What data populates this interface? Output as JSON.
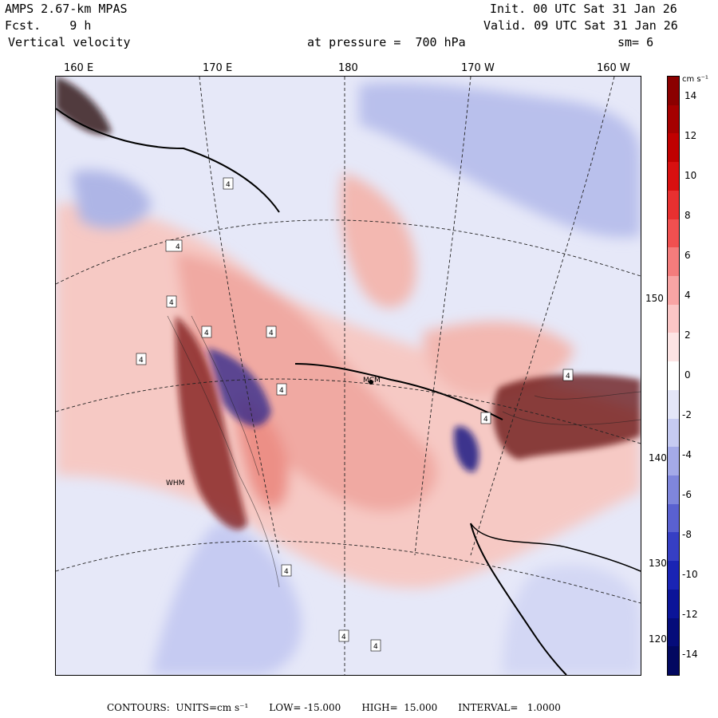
{
  "header": {
    "model": "AMPS 2.67-km MPAS",
    "fcst_label": "Fcst.",
    "fcst_value": "9 h",
    "field": "Vertical velocity",
    "init": "Init. 00 UTC Sat 31 Jan 26",
    "valid": "Valid. 09 UTC Sat 31 Jan 26",
    "pressure": "at pressure =  700 hPa",
    "smooth": "sm= 6"
  },
  "longitude_labels": [
    "160 E",
    "170 E",
    "180",
    "170 W",
    "160 W"
  ],
  "latitude_labels": [
    "150 W",
    "140 W",
    "130",
    "120 W"
  ],
  "station_labels": [
    "MCM",
    "WHM"
  ],
  "colorbar": {
    "unit": "cm s⁻¹",
    "ticks": [
      "14",
      "12",
      "10",
      "8",
      "6",
      "4",
      "2",
      "0",
      "-2",
      "-4",
      "-6",
      "-8",
      "-10",
      "-12",
      "-14"
    ],
    "colors": [
      "#8b0000",
      "#a50000",
      "#c00000",
      "#d81010",
      "#e83030",
      "#f05050",
      "#f47c7c",
      "#f8a4a4",
      "#fbc6c6",
      "#fde4e4",
      "#ffffff",
      "#e4e6f8",
      "#c6cbf2",
      "#a4aae8",
      "#7f86dc",
      "#5a61d0",
      "#363fc4",
      "#1a24b4",
      "#0b1498",
      "#050c7a",
      "#020860"
    ]
  },
  "contour_labels": [
    "4",
    "4",
    "4",
    "4",
    "4",
    "4",
    "4",
    "4",
    "4",
    "4",
    "4",
    "4"
  ],
  "footer": {
    "contours": "CONTOURS:  UNITS=cm s⁻¹",
    "low": "LOW= -15.000",
    "high": "HIGH=  15.000",
    "interval": "INTERVAL=   1.0000"
  }
}
